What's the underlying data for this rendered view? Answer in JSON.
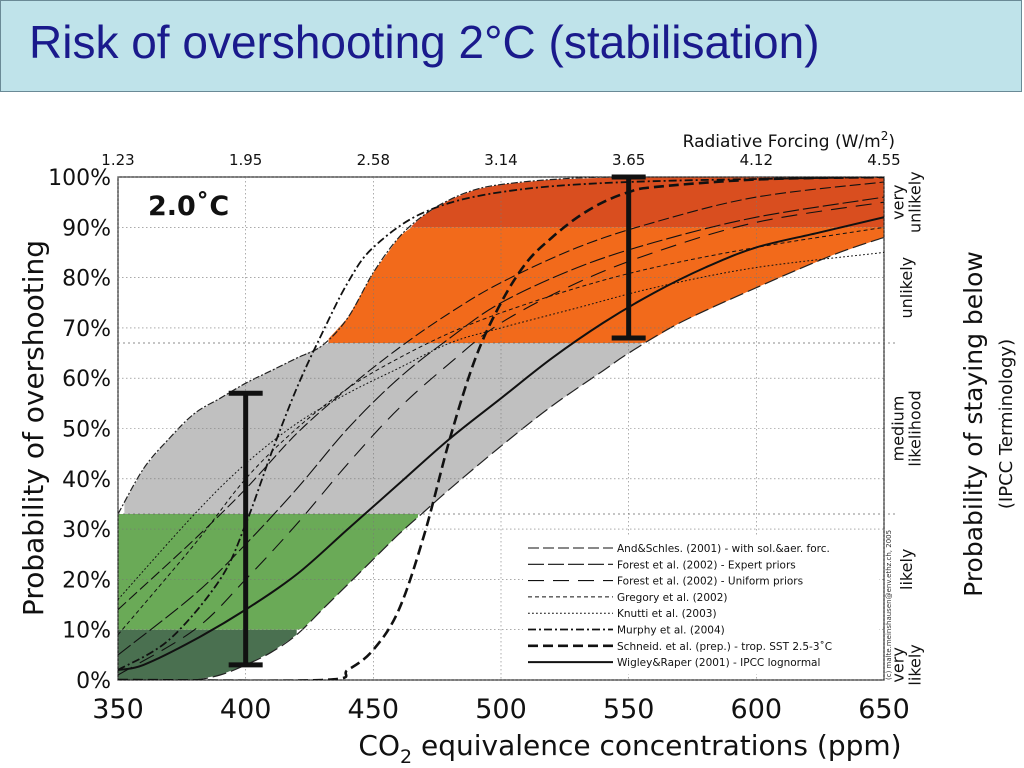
{
  "slide": {
    "title": "Risk of overshooting 2°C (stabilisation)"
  },
  "chart_data": {
    "type": "line",
    "panel_label": "2.0˚C",
    "xlabel_main": "CO",
    "xlabel_sub": "2",
    "xlabel_rest": " equivalence concentrations (ppm)",
    "ylabel": "Probability of overshooting",
    "ylabel_right": "Probability of staying below",
    "ylabel_right_sub": "(IPCC Terminology)",
    "top_axis_label": "Radiative Forcing (W/m",
    "top_axis_label_sup": "2",
    "top_axis_label_close": ")",
    "credit": "(c) malte.meinshausen@env.ethz.ch, 2005",
    "xlim": [
      350,
      650
    ],
    "ylim": [
      0,
      100
    ],
    "grid": true,
    "legend_position": "bottom-right",
    "x_ticks": [
      "350",
      "400",
      "450",
      "500",
      "550",
      "600",
      "650"
    ],
    "y_ticks": [
      "0%",
      "10%",
      "20%",
      "30%",
      "40%",
      "50%",
      "60%",
      "70%",
      "80%",
      "90%",
      "100%"
    ],
    "top_ticks": [
      {
        "ppm": 350,
        "label": "1.23"
      },
      {
        "ppm": 400,
        "label": "1.95"
      },
      {
        "ppm": 450,
        "label": "2.58"
      },
      {
        "ppm": 500,
        "label": "3.14"
      },
      {
        "ppm": 550,
        "label": "3.65"
      },
      {
        "ppm": 600,
        "label": "4.12"
      },
      {
        "ppm": 650,
        "label": "4.55"
      }
    ],
    "likelihood_bands": [
      {
        "label": "very likely",
        "range": [
          0,
          10
        ],
        "color": "#4a7050"
      },
      {
        "label": "likely",
        "range": [
          10,
          33
        ],
        "color": "#6aaa57"
      },
      {
        "label": "medium likelihood",
        "range": [
          33,
          67
        ],
        "color": "#c0c0c0"
      },
      {
        "label": "unlikely",
        "range": [
          67,
          90
        ],
        "color": "#f26a1b"
      },
      {
        "label": "very unlikely",
        "range": [
          90,
          100
        ],
        "color": "#d94e1f"
      }
    ],
    "right_band_labels": [
      {
        "text": [
          "very",
          "likely"
        ],
        "center": 3
      },
      {
        "text": [
          "likely"
        ],
        "center": 22
      },
      {
        "text": [
          "medium",
          "likelihood"
        ],
        "center": 50
      },
      {
        "text": [
          "unlikely"
        ],
        "center": 78
      },
      {
        "text": [
          "very",
          "unlikely"
        ],
        "center": 95
      }
    ],
    "envelope": {
      "upper": [
        [
          350,
          33
        ],
        [
          360,
          42
        ],
        [
          370,
          48
        ],
        [
          380,
          53
        ],
        [
          390,
          56
        ],
        [
          400,
          59
        ],
        [
          410,
          61.5
        ],
        [
          420,
          64
        ],
        [
          430,
          66.5
        ],
        [
          440,
          72
        ],
        [
          450,
          81
        ],
        [
          460,
          88
        ],
        [
          470,
          92.5
        ],
        [
          480,
          95.5
        ],
        [
          490,
          97.5
        ],
        [
          500,
          98.5
        ],
        [
          520,
          99.5
        ],
        [
          550,
          100
        ],
        [
          650,
          100
        ]
      ],
      "lower": [
        [
          350,
          0
        ],
        [
          370,
          0
        ],
        [
          380,
          0
        ],
        [
          390,
          1
        ],
        [
          400,
          3
        ],
        [
          410,
          5.5
        ],
        [
          420,
          9
        ],
        [
          430,
          14
        ],
        [
          440,
          19
        ],
        [
          450,
          24
        ],
        [
          460,
          29
        ],
        [
          470,
          33.5
        ],
        [
          480,
          38
        ],
        [
          500,
          46.5
        ],
        [
          520,
          54.5
        ],
        [
          540,
          61.5
        ],
        [
          550,
          65
        ],
        [
          570,
          71
        ],
        [
          600,
          78
        ],
        [
          630,
          84.5
        ],
        [
          650,
          88
        ]
      ]
    },
    "series": [
      {
        "name": "And&Schles. (2001) - with sol.&aer. forc.",
        "style": "longdash",
        "x": [
          350,
          380,
          400,
          420,
          440,
          460,
          480,
          500,
          530,
          560,
          600,
          650
        ],
        "y": [
          14,
          28,
          38,
          49,
          58,
          66,
          73,
          79,
          86,
          91,
          96,
          99
        ]
      },
      {
        "name": "Forest et al. (2002) - Expert priors",
        "style": "dash",
        "x": [
          350,
          380,
          400,
          420,
          440,
          460,
          480,
          500,
          530,
          560,
          600,
          650
        ],
        "y": [
          5,
          17,
          27,
          38,
          50,
          60,
          68,
          75,
          82,
          87,
          92,
          96
        ]
      },
      {
        "name": "Forest et al. (2002) - Uniform priors",
        "style": "longgap",
        "x": [
          350,
          380,
          400,
          420,
          440,
          460,
          480,
          500,
          530,
          560,
          600,
          650
        ],
        "y": [
          1,
          10,
          20,
          31,
          43,
          54,
          63,
          71,
          79,
          85,
          91,
          95
        ]
      },
      {
        "name": "Gregory et al. (2002)",
        "style": "shortdash",
        "x": [
          350,
          380,
          400,
          420,
          440,
          460,
          480,
          500,
          530,
          560,
          600,
          650
        ],
        "y": [
          9,
          27,
          40,
          50,
          58,
          64,
          69,
          73,
          78,
          82,
          86,
          90
        ]
      },
      {
        "name": "Knutti et al. (2003)",
        "style": "dot",
        "x": [
          350,
          380,
          400,
          420,
          440,
          460,
          480,
          500,
          530,
          560,
          600,
          650
        ],
        "y": [
          16,
          33,
          43,
          51,
          57,
          62,
          67,
          70,
          74,
          78,
          82,
          85
        ]
      },
      {
        "name": "Murphy et al. (2004)",
        "style": "dashdot",
        "x": [
          350,
          370,
          390,
          400,
          410,
          420,
          430,
          440,
          450,
          470,
          500,
          550,
          650
        ],
        "y": [
          2,
          8,
          20,
          31,
          45,
          58,
          69,
          79,
          86,
          93,
          97,
          99,
          100
        ]
      },
      {
        "name": "Schneid. et al. (prep.) - trop. SST 2.5-3˚C",
        "style": "bolddash",
        "x": [
          350,
          430,
          440,
          450,
          460,
          470,
          480,
          490,
          500,
          510,
          520,
          530,
          540,
          550,
          560,
          600,
          650
        ],
        "y": [
          0,
          0,
          2,
          6,
          14,
          29,
          48,
          64,
          75,
          83,
          88,
          92,
          95,
          97,
          98,
          99.5,
          100
        ]
      },
      {
        "name": "Wigley&Raper (2001) - IPCC lognormal",
        "style": "solid",
        "x": [
          350,
          360,
          380,
          400,
          420,
          440,
          460,
          480,
          500,
          520,
          540,
          560,
          580,
          600,
          625,
          650
        ],
        "y": [
          2,
          3,
          8,
          14,
          21,
          30,
          39,
          48,
          56,
          64,
          71,
          77,
          82,
          86,
          89,
          92
        ]
      }
    ],
    "uncertainty_bars": [
      {
        "x": 400,
        "low": 3,
        "high": 57
      },
      {
        "x": 550,
        "low": 68,
        "high": 100
      }
    ]
  }
}
